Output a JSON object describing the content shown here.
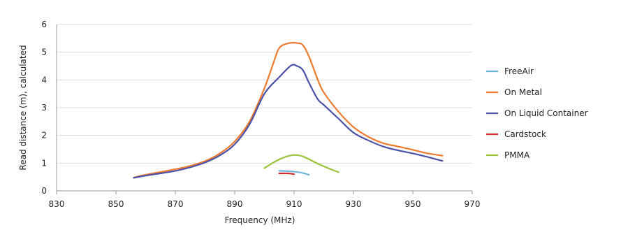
{
  "chart_data": {
    "type": "line",
    "title": "",
    "xlabel": "Frequency (MHz)",
    "ylabel": "Read distance (m), calculated",
    "xlim": [
      830,
      970
    ],
    "ylim": [
      0,
      6
    ],
    "xticks": [
      830,
      850,
      870,
      890,
      910,
      930,
      950,
      970
    ],
    "yticks": [
      0,
      1,
      2,
      3,
      4,
      5,
      6
    ],
    "grid": "horizontal",
    "legend_position": "right",
    "series": [
      {
        "name": "FreeAir",
        "color": "#6fb3e0",
        "points": [
          [
            905,
            0.72
          ],
          [
            908,
            0.71
          ],
          [
            911,
            0.68
          ],
          [
            913,
            0.64
          ],
          [
            915,
            0.58
          ]
        ]
      },
      {
        "name": "On Metal",
        "color": "#ee7b30",
        "points": [
          [
            856,
            0.48
          ],
          [
            860,
            0.58
          ],
          [
            865,
            0.68
          ],
          [
            870,
            0.78
          ],
          [
            875,
            0.9
          ],
          [
            880,
            1.07
          ],
          [
            885,
            1.35
          ],
          [
            890,
            1.78
          ],
          [
            895,
            2.5
          ],
          [
            900,
            3.7
          ],
          [
            903,
            4.6
          ],
          [
            905,
            5.15
          ],
          [
            908,
            5.32
          ],
          [
            911,
            5.33
          ],
          [
            913,
            5.25
          ],
          [
            915,
            4.85
          ],
          [
            918,
            4.0
          ],
          [
            920,
            3.55
          ],
          [
            925,
            2.85
          ],
          [
            930,
            2.3
          ],
          [
            935,
            1.95
          ],
          [
            940,
            1.72
          ],
          [
            945,
            1.6
          ],
          [
            950,
            1.48
          ],
          [
            955,
            1.35
          ],
          [
            960,
            1.27
          ]
        ]
      },
      {
        "name": "On Liquid Container",
        "color": "#4a52a8",
        "points": [
          [
            856,
            0.47
          ],
          [
            860,
            0.55
          ],
          [
            865,
            0.63
          ],
          [
            870,
            0.72
          ],
          [
            875,
            0.85
          ],
          [
            880,
            1.02
          ],
          [
            885,
            1.28
          ],
          [
            890,
            1.68
          ],
          [
            895,
            2.4
          ],
          [
            900,
            3.5
          ],
          [
            905,
            4.1
          ],
          [
            909,
            4.52
          ],
          [
            911,
            4.5
          ],
          [
            913,
            4.35
          ],
          [
            915,
            3.9
          ],
          [
            918,
            3.3
          ],
          [
            920,
            3.1
          ],
          [
            925,
            2.6
          ],
          [
            930,
            2.1
          ],
          [
            935,
            1.82
          ],
          [
            940,
            1.6
          ],
          [
            945,
            1.46
          ],
          [
            950,
            1.35
          ],
          [
            955,
            1.22
          ],
          [
            960,
            1.08
          ]
        ]
      },
      {
        "name": "Cardstock",
        "color": "#cc2b2b",
        "points": [
          [
            905,
            0.63
          ],
          [
            908,
            0.63
          ],
          [
            910,
            0.6
          ]
        ]
      },
      {
        "name": "PMMA",
        "color": "#9bc33c",
        "points": [
          [
            900,
            0.82
          ],
          [
            903,
            1.02
          ],
          [
            906,
            1.18
          ],
          [
            909,
            1.28
          ],
          [
            911,
            1.29
          ],
          [
            913,
            1.24
          ],
          [
            915,
            1.14
          ],
          [
            918,
            0.98
          ],
          [
            921,
            0.84
          ],
          [
            925,
            0.67
          ]
        ]
      }
    ]
  }
}
